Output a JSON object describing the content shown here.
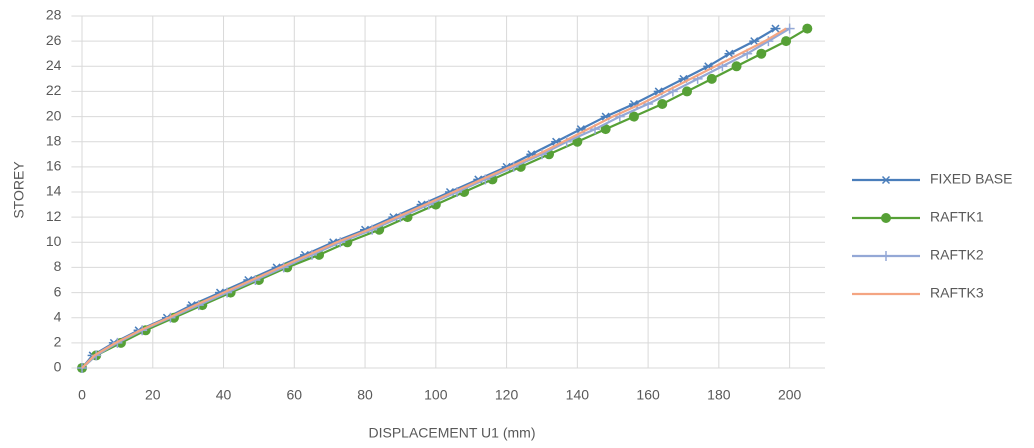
{
  "chart_data": {
    "type": "line",
    "xlabel": "DISPLACEMENT  U1 (mm)",
    "ylabel": "STOREY",
    "xlim": [
      -3,
      210
    ],
    "xticks": [
      0,
      20,
      40,
      60,
      80,
      100,
      120,
      140,
      160,
      180,
      200
    ],
    "ylim": [
      0,
      28
    ],
    "yticks": [
      0,
      2,
      4,
      6,
      8,
      10,
      12,
      14,
      16,
      18,
      20,
      22,
      24,
      26,
      28
    ],
    "grid": true,
    "legend": "right",
    "series": [
      {
        "name": "FIXED BASE",
        "color": "#4a7ebb",
        "marker": "star",
        "x": [
          0,
          3,
          9,
          16,
          24,
          31,
          39,
          47,
          55,
          63,
          71,
          80,
          88,
          96,
          104,
          112,
          120,
          127,
          134,
          141,
          148,
          156,
          163,
          170,
          177,
          183,
          190,
          196
        ],
        "values": [
          0,
          1,
          2,
          3,
          4,
          5,
          6,
          7,
          8,
          9,
          10,
          11,
          12,
          13,
          14,
          15,
          16,
          17,
          18,
          19,
          20,
          21,
          22,
          23,
          24,
          25,
          26,
          27
        ]
      },
      {
        "name": "RAFTK1",
        "color": "#56a036",
        "marker": "circle",
        "x": [
          0,
          4,
          11,
          18,
          26,
          34,
          42,
          50,
          58,
          67,
          75,
          84,
          92,
          100,
          108,
          116,
          124,
          132,
          140,
          148,
          156,
          164,
          171,
          178,
          185,
          192,
          199,
          205
        ],
        "values": [
          0,
          1,
          2,
          3,
          4,
          5,
          6,
          7,
          8,
          9,
          10,
          11,
          12,
          13,
          14,
          15,
          16,
          17,
          18,
          19,
          20,
          21,
          22,
          23,
          24,
          25,
          26,
          27
        ]
      },
      {
        "name": "RAFTK2",
        "color": "#94a8d6",
        "marker": "plus",
        "x": [
          0,
          4,
          10,
          17,
          25,
          33,
          41,
          49,
          57,
          65,
          73,
          82,
          90,
          98,
          106,
          114,
          122,
          130,
          137,
          145,
          152,
          160,
          167,
          174,
          181,
          188,
          194,
          200
        ],
        "values": [
          0,
          1,
          2,
          3,
          4,
          5,
          6,
          7,
          8,
          9,
          10,
          11,
          12,
          13,
          14,
          15,
          16,
          17,
          18,
          19,
          20,
          21,
          22,
          23,
          24,
          25,
          26,
          27
        ]
      },
      {
        "name": "RAFTK3",
        "color": "#f4a582",
        "marker": "none",
        "x": [
          0,
          3.5,
          9.5,
          16.5,
          24.5,
          32,
          40,
          48,
          56,
          64,
          72,
          81,
          89,
          97,
          105,
          113,
          121,
          129,
          136,
          143,
          150,
          158,
          165,
          172,
          179,
          186,
          193,
          199
        ],
        "values": [
          0,
          1,
          2,
          3,
          4,
          5,
          6,
          7,
          8,
          9,
          10,
          11,
          12,
          13,
          14,
          15,
          16,
          17,
          18,
          19,
          20,
          21,
          22,
          23,
          24,
          25,
          26,
          27
        ]
      }
    ]
  }
}
